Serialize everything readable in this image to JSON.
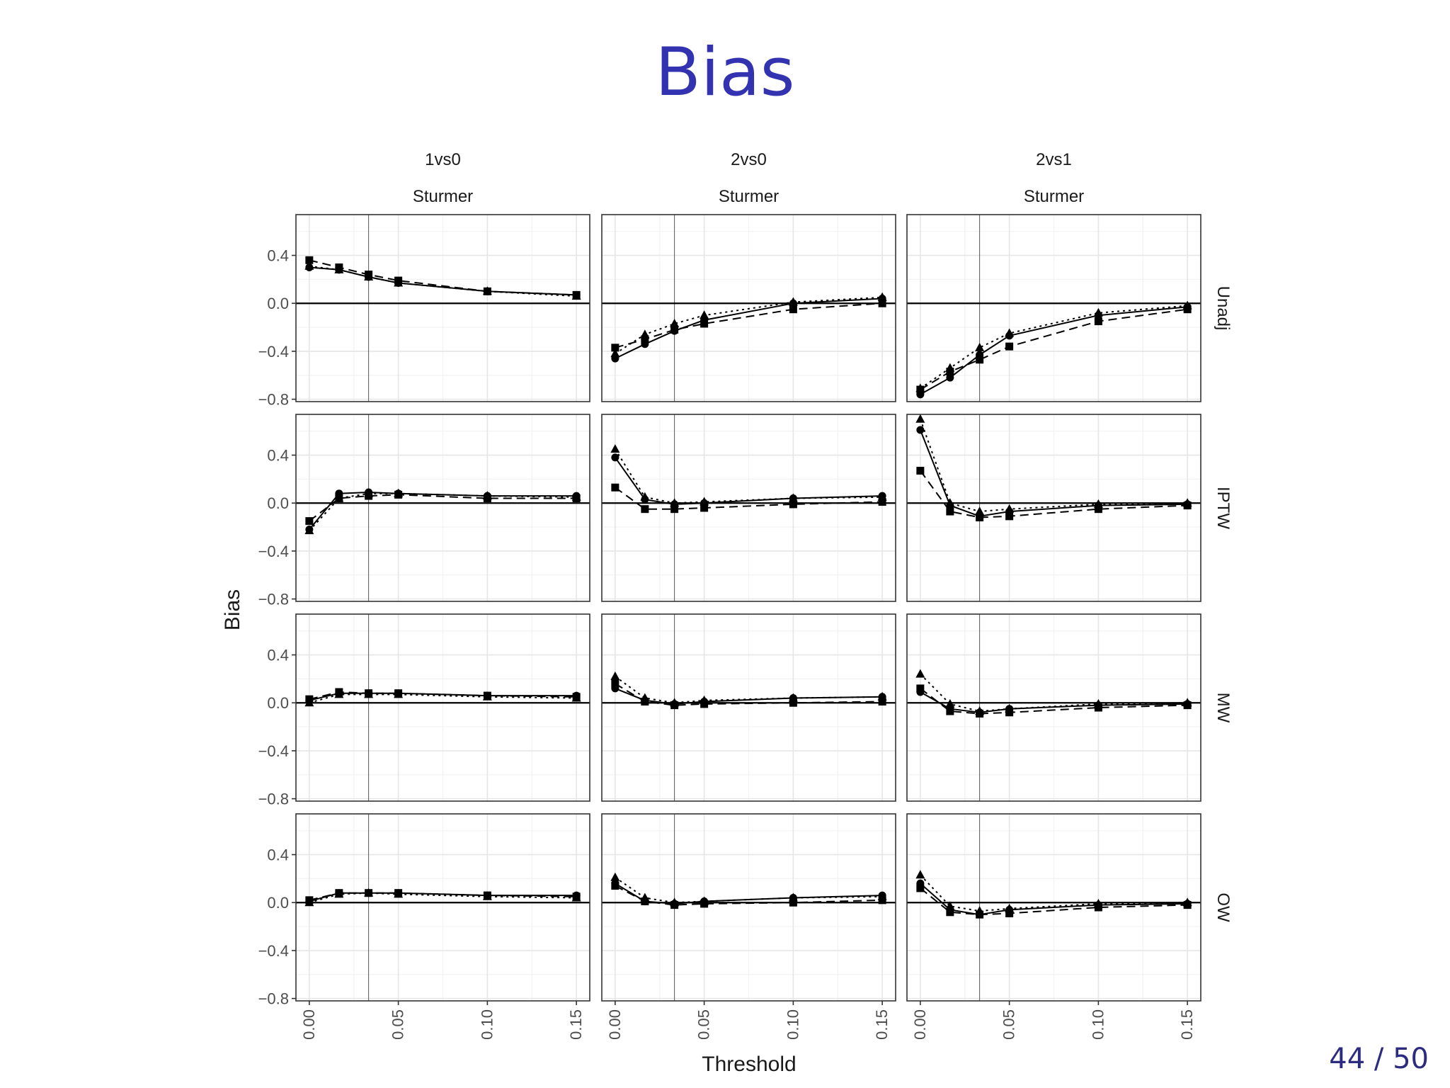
{
  "slide": {
    "title": "Bias",
    "page": "44 / 50"
  },
  "chart_data": {
    "type": "line",
    "facet_columns": [
      "1vs0",
      "2vs0",
      "2vs1"
    ],
    "facet_column_sublabel": "Sturmer",
    "facet_rows": [
      "Unadj",
      "IPTW",
      "MW",
      "OW"
    ],
    "xlabel": "Threshold",
    "ylabel": "Bias",
    "x": [
      0.0,
      0.0167,
      0.0333,
      0.05,
      0.1,
      0.15
    ],
    "xticks": [
      "0.00",
      "0.05",
      "0.10",
      "0.15"
    ],
    "xtick_values": [
      0.0,
      0.05,
      0.1,
      0.15
    ],
    "xlim": [
      -0.0075,
      0.1575
    ],
    "yticks": [
      "0.4",
      "0.0",
      "−0.4",
      "−0.8"
    ],
    "ytick_values": [
      0.4,
      0.0,
      -0.4,
      -0.8
    ],
    "ylim": [
      -0.82,
      0.74
    ],
    "reference_line_y": 0.0,
    "vertical_reference_x": 0.0333,
    "grid": true,
    "series_styles": [
      {
        "marker": "circle",
        "dash": "solid"
      },
      {
        "marker": "square",
        "dash": "dashed"
      },
      {
        "marker": "triangle",
        "dash": "dotted"
      }
    ],
    "panels": [
      {
        "row": "Unadj",
        "col": "1vs0",
        "series": [
          {
            "values": [
              0.3,
              0.28,
              0.22,
              0.17,
              0.1,
              0.07
            ]
          },
          {
            "values": [
              0.36,
              0.3,
              0.24,
              0.19,
              0.1,
              0.07
            ]
          },
          {
            "values": [
              0.31,
              0.28,
              0.22,
              0.17,
              0.1,
              0.06
            ]
          }
        ]
      },
      {
        "row": "Unadj",
        "col": "2vs0",
        "series": [
          {
            "values": [
              -0.46,
              -0.34,
              -0.23,
              -0.14,
              0.0,
              0.04
            ]
          },
          {
            "values": [
              -0.37,
              -0.3,
              -0.22,
              -0.17,
              -0.05,
              0.0
            ]
          },
          {
            "values": [
              -0.42,
              -0.26,
              -0.17,
              -0.1,
              0.01,
              0.05
            ]
          }
        ]
      },
      {
        "row": "Unadj",
        "col": "2vs1",
        "series": [
          {
            "values": [
              -0.76,
              -0.62,
              -0.43,
              -0.27,
              -0.1,
              -0.03
            ]
          },
          {
            "values": [
              -0.72,
              -0.57,
              -0.47,
              -0.36,
              -0.15,
              -0.05
            ]
          },
          {
            "values": [
              -0.71,
              -0.54,
              -0.37,
              -0.25,
              -0.08,
              -0.02
            ]
          }
        ]
      },
      {
        "row": "IPTW",
        "col": "1vs0",
        "series": [
          {
            "values": [
              -0.22,
              0.08,
              0.09,
              0.08,
              0.06,
              0.06
            ]
          },
          {
            "values": [
              -0.15,
              0.04,
              0.06,
              0.07,
              0.04,
              0.04
            ]
          },
          {
            "values": [
              -0.23,
              0.04,
              0.08,
              0.08,
              0.06,
              0.05
            ]
          }
        ]
      },
      {
        "row": "IPTW",
        "col": "2vs0",
        "series": [
          {
            "values": [
              0.38,
              0.03,
              -0.01,
              0.0,
              0.04,
              0.06
            ]
          },
          {
            "values": [
              0.13,
              -0.05,
              -0.05,
              -0.04,
              -0.01,
              0.01
            ]
          },
          {
            "values": [
              0.45,
              0.05,
              0.0,
              0.01,
              0.04,
              0.05
            ]
          }
        ]
      },
      {
        "row": "IPTW",
        "col": "2vs1",
        "series": [
          {
            "values": [
              0.61,
              -0.02,
              -0.11,
              -0.07,
              -0.02,
              -0.01
            ]
          },
          {
            "values": [
              0.27,
              -0.07,
              -0.12,
              -0.11,
              -0.05,
              -0.02
            ]
          },
          {
            "values": [
              0.7,
              0.0,
              -0.07,
              -0.05,
              -0.01,
              0.0
            ]
          }
        ]
      },
      {
        "row": "MW",
        "col": "1vs0",
        "series": [
          {
            "values": [
              0.02,
              0.08,
              0.08,
              0.08,
              0.06,
              0.06
            ]
          },
          {
            "values": [
              0.03,
              0.09,
              0.08,
              0.08,
              0.06,
              0.05
            ]
          },
          {
            "values": [
              0.0,
              0.07,
              0.07,
              0.07,
              0.05,
              0.04
            ]
          }
        ]
      },
      {
        "row": "MW",
        "col": "2vs0",
        "series": [
          {
            "values": [
              0.12,
              0.02,
              -0.01,
              0.01,
              0.04,
              0.05
            ]
          },
          {
            "values": [
              0.16,
              0.01,
              -0.02,
              -0.01,
              0.0,
              0.01
            ]
          },
          {
            "values": [
              0.22,
              0.04,
              0.0,
              0.02,
              0.04,
              0.05
            ]
          }
        ]
      },
      {
        "row": "MW",
        "col": "2vs1",
        "series": [
          {
            "values": [
              0.09,
              -0.05,
              -0.08,
              -0.05,
              -0.02,
              -0.01
            ]
          },
          {
            "values": [
              0.12,
              -0.07,
              -0.09,
              -0.08,
              -0.04,
              -0.02
            ]
          },
          {
            "values": [
              0.24,
              -0.01,
              -0.07,
              -0.05,
              -0.01,
              0.0
            ]
          }
        ]
      },
      {
        "row": "OW",
        "col": "1vs0",
        "series": [
          {
            "values": [
              0.01,
              0.08,
              0.08,
              0.08,
              0.06,
              0.06
            ]
          },
          {
            "values": [
              0.02,
              0.08,
              0.08,
              0.08,
              0.06,
              0.05
            ]
          },
          {
            "values": [
              0.0,
              0.07,
              0.08,
              0.07,
              0.05,
              0.04
            ]
          }
        ]
      },
      {
        "row": "OW",
        "col": "2vs0",
        "series": [
          {
            "values": [
              0.16,
              0.01,
              -0.01,
              0.01,
              0.04,
              0.06
            ]
          },
          {
            "values": [
              0.14,
              0.01,
              -0.02,
              -0.01,
              0.0,
              0.02
            ]
          },
          {
            "values": [
              0.21,
              0.04,
              0.0,
              0.01,
              0.04,
              0.05
            ]
          }
        ]
      },
      {
        "row": "OW",
        "col": "2vs1",
        "series": [
          {
            "values": [
              0.16,
              -0.06,
              -0.1,
              -0.06,
              -0.02,
              -0.01
            ]
          },
          {
            "values": [
              0.12,
              -0.08,
              -0.1,
              -0.09,
              -0.04,
              -0.02
            ]
          },
          {
            "values": [
              0.23,
              -0.03,
              -0.07,
              -0.05,
              -0.01,
              0.0
            ]
          }
        ]
      }
    ]
  }
}
